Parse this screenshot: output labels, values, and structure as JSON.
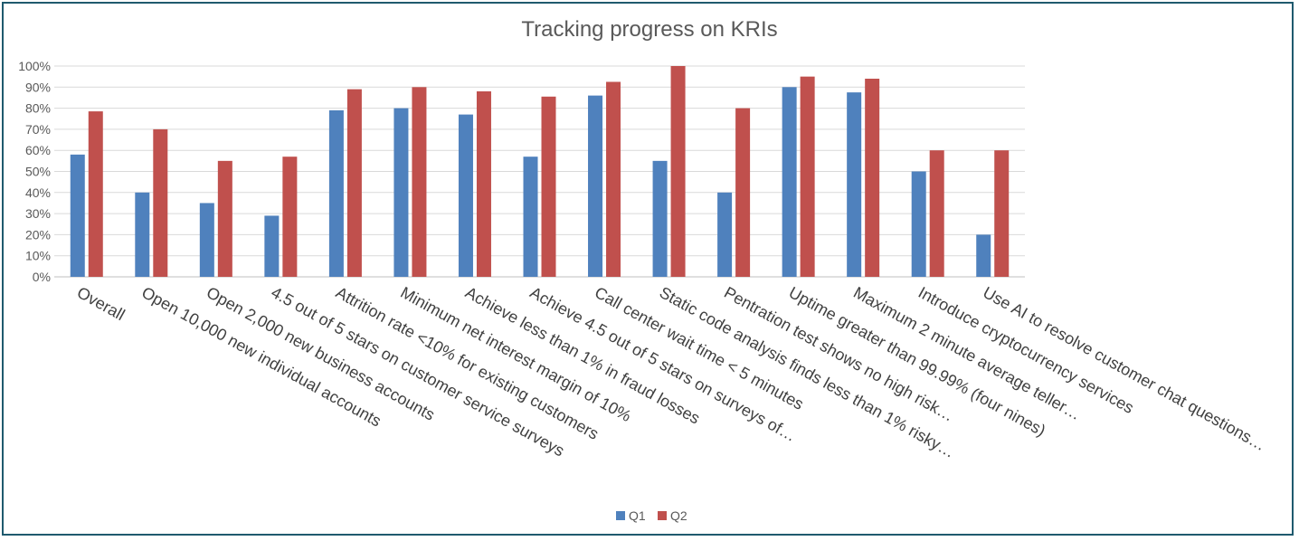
{
  "chart_data": {
    "type": "bar",
    "title": "Tracking progress on KRIs",
    "xlabel": "",
    "ylabel": "",
    "ylim": [
      0,
      1
    ],
    "y_ticks": [
      "0%",
      "10%",
      "20%",
      "30%",
      "40%",
      "50%",
      "60%",
      "70%",
      "80%",
      "90%",
      "100%"
    ],
    "grid": true,
    "legend_position": "bottom",
    "categories": [
      "Overall",
      "Open 10,000 new individual accounts",
      "Open 2,000 new business accounts",
      "4.5 out of 5 stars on customer service surveys",
      "Attrition rate <10% for existing customers",
      "Minimum net interest margin of 10%",
      "Achieve less than 1% in fraud losses",
      "Achieve 4.5 out of 5 stars on surveys of…",
      "Call center wait time < 5 minutes",
      "Static code analysis finds less than 1%  risky…",
      "Pentration test shows no high risk…",
      "Uptime greater than 99.99% (four nines)",
      "Maximum 2 minute average teller…",
      "Introduce cryptocurrency services",
      "Use AI to resolve customer chat questions…"
    ],
    "series": [
      {
        "name": "Q1",
        "color": "#4f81bd",
        "values": [
          0.58,
          0.4,
          0.35,
          0.29,
          0.79,
          0.8,
          0.77,
          0.57,
          0.86,
          0.55,
          0.4,
          0.9,
          0.875,
          0.5,
          0.2
        ]
      },
      {
        "name": "Q2",
        "color": "#c0504d",
        "values": [
          0.785,
          0.7,
          0.55,
          0.57,
          0.89,
          0.9,
          0.88,
          0.855,
          0.925,
          1.0,
          0.8,
          0.95,
          0.94,
          0.6,
          0.6
        ]
      }
    ]
  }
}
